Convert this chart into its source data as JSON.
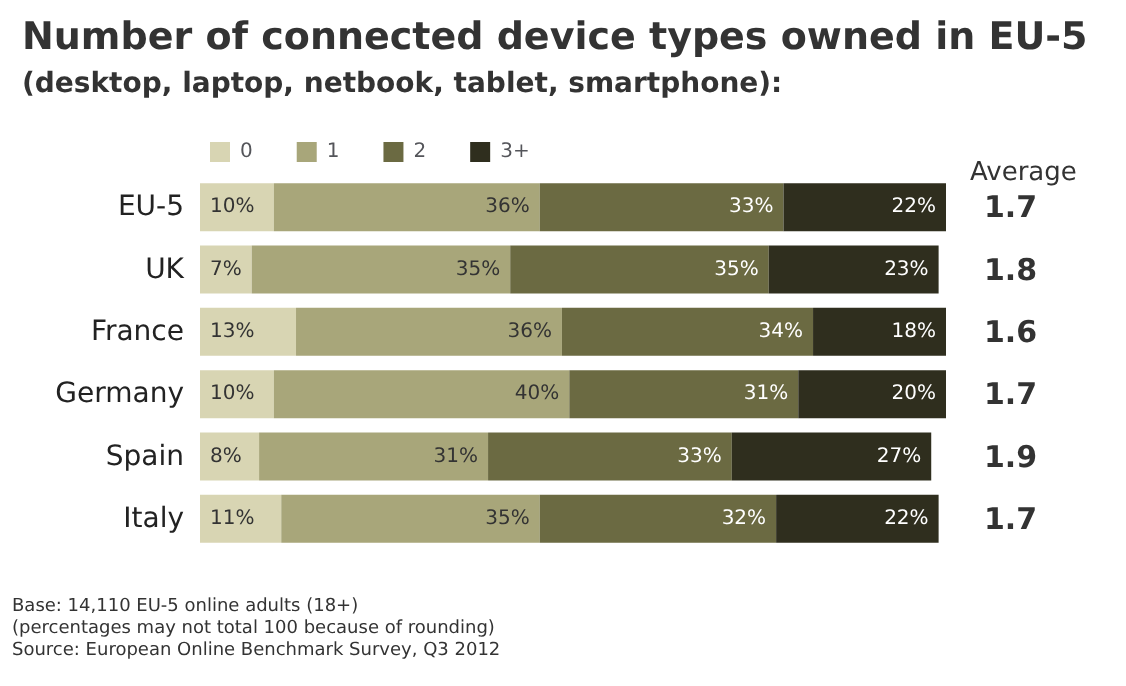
{
  "chart_data": {
    "type": "bar",
    "orientation": "horizontal",
    "stacked": true,
    "title": "Number of connected device types owned in EU-5",
    "subtitle": "(desktop, laptop, netbook, tablet, smartphone):",
    "categories": [
      "EU-5",
      "UK",
      "France",
      "Germany",
      "Spain",
      "Italy"
    ],
    "legend": "top",
    "series": [
      {
        "name": "0",
        "color": "#d8d5b3",
        "values": [
          10,
          7,
          13,
          10,
          8,
          11
        ],
        "value_labels": [
          "10%",
          "7%",
          "13%",
          "10%",
          "8%",
          "11%"
        ]
      },
      {
        "name": "1",
        "color": "#a8a67a",
        "values": [
          36,
          35,
          36,
          40,
          31,
          35
        ],
        "value_labels": [
          "36%",
          "35%",
          "36%",
          "40%",
          "31%",
          "35%"
        ]
      },
      {
        "name": "2",
        "color": "#6b6a42",
        "values": [
          33,
          35,
          34,
          31,
          33,
          32
        ],
        "value_labels": [
          "33%",
          "35%",
          "34%",
          "31%",
          "33%",
          "32%"
        ]
      },
      {
        "name": "3+",
        "color": "#2f2e1e",
        "values": [
          22,
          23,
          18,
          20,
          27,
          22
        ],
        "value_labels": [
          "22%",
          "23%",
          "18%",
          "20%",
          "27%",
          "22%"
        ]
      }
    ],
    "annotations": [
      "Average",
      "1.7",
      "1.8",
      "1.6",
      "1.7",
      "1.9",
      "1.7",
      "Base: 14,110 EU-5 online adults (18+)",
      "(percentages may not total 100 because of rounding)",
      "Source: European Online Benchmark Survey, Q3 2012"
    ]
  }
}
